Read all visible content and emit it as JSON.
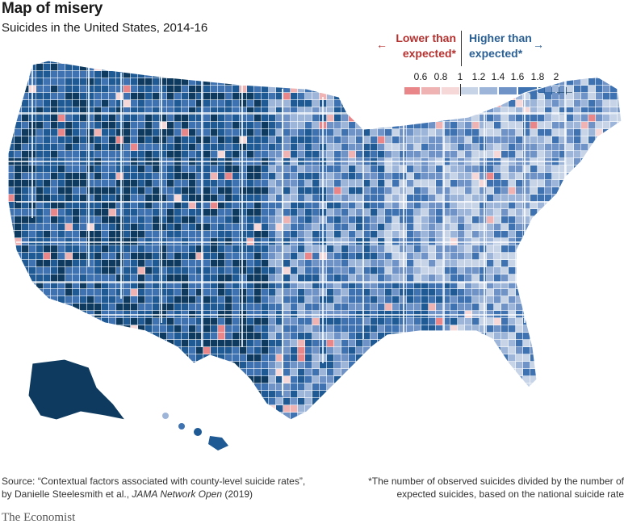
{
  "header": {
    "title": "Map of misery",
    "subtitle": "Suicides in the United States, 2014-16"
  },
  "legend": {
    "lower_label_1": "Lower than",
    "lower_label_2": "expected*",
    "higher_label_1": "Higher than",
    "higher_label_2": "expected*",
    "arrow_left": "←",
    "arrow_right": "→",
    "ticks": [
      "0.6",
      "0.8",
      "1",
      "1.2",
      "1.4",
      "1.6",
      "1.8",
      "2"
    ],
    "colors": [
      "#e8868a",
      "#f0b3b3",
      "#f6d8d8",
      "#c7d4e8",
      "#9db5d8",
      "#6f93c6",
      "#3f72b0",
      "#1f5a95",
      "#0d3a5e"
    ]
  },
  "footer": {
    "source_1": "Source: “Contextual factors associated with county-level suicide rates”,",
    "source_2a": "by Danielle Steelesmith et al., ",
    "source_2b": "JAMA Network Open",
    "source_2c": " (2019)",
    "note_1": "*The number of observed suicides divided by the number of",
    "note_2": "expected suicides, based on the national suicide rate",
    "brand": "The Economist"
  },
  "map": {
    "regions": [
      {
        "name": "Alaska"
      },
      {
        "name": "Hawaii"
      }
    ]
  }
}
